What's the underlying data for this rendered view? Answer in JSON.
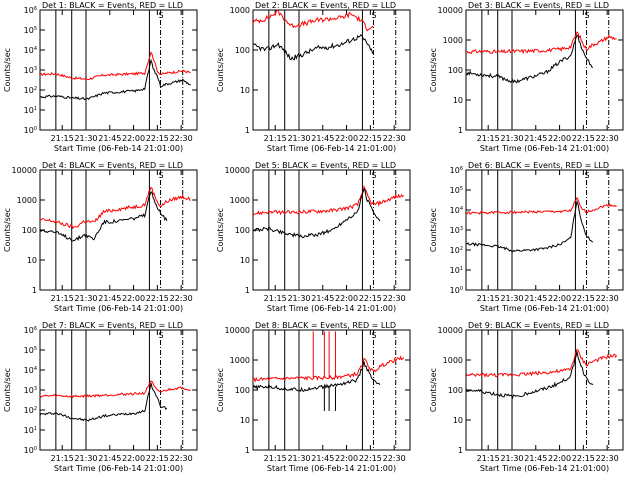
{
  "chart_data": {
    "type": "line",
    "time_axis_label": "Start Time (06-Feb-14 21:01:00)",
    "ylabel": "Counts/sec",
    "x_tick_labels": [
      "21:15",
      "21:30",
      "21:45",
      "22:00",
      "22:15",
      "22:30"
    ],
    "x_tick_minutes": [
      14,
      29,
      44,
      59,
      74,
      89
    ],
    "xlim_minutes": [
      0,
      99
    ],
    "y_scale": "log",
    "series_colors": {
      "black": "#000000",
      "red": "#ff0000"
    },
    "panels": [
      {
        "title": "Det 1: BLACK = Events, RED = LLD",
        "ylim": [
          1,
          1000000
        ],
        "y_tick_labels": [
          "10^6",
          "10^5",
          "10^4",
          "10^3",
          "10^2",
          "10^1",
          "10^0"
        ],
        "y_tick_values": [
          1000000,
          100000,
          10000,
          1000,
          100,
          10,
          1
        ],
        "events_t": [
          0,
          10,
          20,
          30,
          40,
          50,
          60,
          66,
          70,
          72,
          74,
          76,
          80,
          85,
          90,
          95
        ],
        "events_y": [
          45,
          50,
          40,
          35,
          70,
          80,
          90,
          120,
          3000,
          900,
          500,
          160,
          200,
          250,
          320,
          180
        ],
        "lld_t": [
          0,
          10,
          20,
          30,
          40,
          50,
          60,
          66,
          70,
          72,
          74,
          76,
          80,
          85,
          90,
          95
        ],
        "lld_y": [
          600,
          650,
          400,
          350,
          550,
          600,
          650,
          700,
          8000,
          3000,
          900,
          600,
          700,
          800,
          900,
          750
        ]
      },
      {
        "title": "Det 2: BLACK = Events, RED = LLD",
        "ylim": [
          1,
          1000
        ],
        "y_tick_labels": [
          "1000",
          "100",
          "10",
          "1"
        ],
        "y_tick_values": [
          1000,
          100,
          10,
          1
        ],
        "events_t": [
          0,
          8,
          16,
          24,
          32,
          40,
          48,
          56,
          62,
          68,
          72,
          74,
          76
        ],
        "events_y": [
          130,
          100,
          140,
          60,
          80,
          110,
          120,
          140,
          180,
          220,
          150,
          100,
          90
        ],
        "lld_t": [
          0,
          8,
          16,
          24,
          32,
          40,
          48,
          56,
          62,
          68,
          72,
          74,
          76
        ],
        "lld_y": [
          500,
          600,
          900,
          400,
          450,
          550,
          600,
          650,
          800,
          550,
          350,
          380,
          400
        ]
      },
      {
        "title": "Det 3: BLACK = Events, RED = LLD",
        "ylim": [
          1,
          10000
        ],
        "y_tick_labels": [
          "10000",
          "1000",
          "100",
          "10",
          "1"
        ],
        "y_tick_values": [
          10000,
          1000,
          100,
          10,
          1
        ],
        "events_t": [
          0,
          10,
          20,
          30,
          40,
          50,
          60,
          66,
          70,
          72,
          74,
          76,
          80
        ],
        "events_y": [
          80,
          70,
          60,
          40,
          55,
          80,
          200,
          300,
          1500,
          800,
          400,
          250,
          120
        ],
        "lld_t": [
          0,
          10,
          20,
          30,
          40,
          50,
          60,
          66,
          70,
          72,
          74,
          76,
          80,
          85,
          90,
          95
        ],
        "lld_y": [
          400,
          420,
          400,
          420,
          430,
          450,
          500,
          600,
          1800,
          1200,
          700,
          500,
          700,
          900,
          1300,
          1100
        ]
      },
      {
        "title": "Det 4: BLACK = Events, RED = LLD",
        "ylim": [
          1,
          10000
        ],
        "y_tick_labels": [
          "10000",
          "1000",
          "100",
          "10",
          "1"
        ],
        "y_tick_values": [
          10000,
          1000,
          100,
          10,
          1
        ],
        "events_t": [
          0,
          8,
          16,
          22,
          28,
          34,
          40,
          50,
          60,
          66,
          70,
          72,
          74,
          76,
          80
        ],
        "events_y": [
          100,
          90,
          60,
          45,
          70,
          50,
          180,
          200,
          250,
          300,
          2000,
          900,
          600,
          400,
          200
        ],
        "lld_t": [
          0,
          8,
          16,
          22,
          28,
          34,
          40,
          50,
          60,
          66,
          70,
          72,
          74,
          76,
          80,
          85,
          90,
          95
        ],
        "lld_y": [
          220,
          200,
          150,
          120,
          200,
          180,
          400,
          500,
          600,
          700,
          2800,
          1500,
          900,
          600,
          900,
          1100,
          1300,
          1000
        ]
      },
      {
        "title": "Det 5: BLACK = Events, RED = LLD",
        "ylim": [
          1,
          10000
        ],
        "y_tick_labels": [
          "10000",
          "1000",
          "100",
          "10",
          "1"
        ],
        "y_tick_values": [
          10000,
          1000,
          100,
          10,
          1
        ],
        "events_t": [
          0,
          10,
          20,
          30,
          40,
          50,
          60,
          66,
          70,
          72,
          74,
          76,
          80
        ],
        "events_y": [
          100,
          110,
          80,
          60,
          70,
          100,
          250,
          400,
          2500,
          1000,
          700,
          350,
          200
        ],
        "lld_t": [
          0,
          10,
          20,
          30,
          40,
          50,
          60,
          66,
          70,
          72,
          74,
          76,
          80,
          85,
          90,
          95
        ],
        "lld_y": [
          350,
          400,
          380,
          400,
          420,
          450,
          550,
          700,
          2500,
          1500,
          900,
          700,
          800,
          1000,
          1300,
          1400
        ]
      },
      {
        "title": "Det 6: BLACK = Events, RED = LLD",
        "ylim": [
          1,
          1000000
        ],
        "y_tick_labels": [
          "10^6",
          "10^5",
          "10^4",
          "10^3",
          "10^2",
          "10^1",
          "10^0"
        ],
        "y_tick_values": [
          1000000,
          100000,
          10000,
          1000,
          100,
          10,
          1
        ],
        "events_t": [
          0,
          10,
          20,
          30,
          40,
          50,
          60,
          66,
          70,
          72,
          74,
          76,
          80
        ],
        "events_y": [
          200,
          180,
          150,
          90,
          100,
          120,
          200,
          400,
          30000,
          5000,
          1500,
          500,
          250
        ],
        "lld_t": [
          0,
          10,
          20,
          30,
          40,
          50,
          60,
          66,
          70,
          72,
          74,
          76,
          80,
          85,
          90,
          95
        ],
        "lld_y": [
          7000,
          7200,
          7500,
          7800,
          8000,
          8200,
          8500,
          9000,
          40000,
          15000,
          10000,
          8000,
          10000,
          14000,
          18000,
          16000
        ]
      },
      {
        "title": "Det 7: BLACK = Events, RED = LLD",
        "ylim": [
          1,
          1000000
        ],
        "y_tick_labels": [
          "10^6",
          "10^5",
          "10^4",
          "10^3",
          "10^2",
          "10^1",
          "10^0"
        ],
        "y_tick_values": [
          1000000,
          100000,
          10000,
          1000,
          100,
          10,
          1
        ],
        "events_t": [
          0,
          10,
          20,
          30,
          40,
          50,
          60,
          66,
          70,
          72,
          74,
          76,
          80
        ],
        "events_y": [
          60,
          70,
          40,
          30,
          50,
          60,
          70,
          90,
          2000,
          800,
          400,
          160,
          120
        ],
        "lld_t": [
          0,
          10,
          20,
          30,
          40,
          50,
          60,
          66,
          70,
          72,
          74,
          76,
          80,
          85,
          90,
          95
        ],
        "lld_y": [
          500,
          520,
          480,
          500,
          550,
          600,
          650,
          700,
          3000,
          1500,
          900,
          800,
          1000,
          1200,
          1300,
          1000
        ]
      },
      {
        "title": "Det 8: BLACK = Events, RED = LLD",
        "ylim": [
          1,
          10000
        ],
        "y_tick_labels": [
          "10000",
          "1000",
          "100",
          "10",
          "1"
        ],
        "y_tick_values": [
          10000,
          1000,
          100,
          10,
          1
        ],
        "events_t": [
          0,
          10,
          20,
          30,
          40,
          50,
          60,
          66,
          70,
          72,
          74,
          76,
          80
        ],
        "events_y": [
          120,
          130,
          110,
          100,
          120,
          140,
          180,
          220,
          800,
          500,
          300,
          200,
          150
        ],
        "lld_t": [
          0,
          10,
          20,
          30,
          40,
          50,
          60,
          66,
          70,
          72,
          74,
          76,
          80,
          85,
          90,
          95
        ],
        "lld_y": [
          220,
          230,
          240,
          250,
          250,
          260,
          300,
          350,
          1000,
          800,
          500,
          400,
          600,
          800,
          1000,
          1200
        ],
        "red_spikes_t": [
          38,
          45,
          48,
          52
        ],
        "black_drops_t": [
          45,
          48,
          52
        ]
      },
      {
        "title": "Det 9: BLACK = Events, RED = LLD",
        "ylim": [
          1,
          10000
        ],
        "y_tick_labels": [
          "10000",
          "1000",
          "100",
          "10",
          "1"
        ],
        "y_tick_values": [
          10000,
          1000,
          100,
          10,
          1
        ],
        "events_t": [
          0,
          10,
          20,
          30,
          40,
          50,
          60,
          66,
          70,
          72,
          74,
          76,
          80
        ],
        "events_y": [
          100,
          90,
          70,
          60,
          80,
          110,
          180,
          300,
          1800,
          800,
          400,
          250,
          150
        ],
        "lld_t": [
          0,
          10,
          20,
          30,
          40,
          50,
          60,
          66,
          70,
          72,
          74,
          76,
          80,
          85,
          90,
          95
        ],
        "lld_y": [
          300,
          320,
          310,
          330,
          350,
          380,
          420,
          500,
          2200,
          1400,
          900,
          700,
          900,
          1100,
          1300,
          1400
        ]
      }
    ],
    "vertical_markers": {
      "solid_minutes": [
        10,
        20,
        29,
        69
      ],
      "dash_dot_minutes": [
        76,
        90
      ],
      "label_near_marker": "S"
    }
  }
}
